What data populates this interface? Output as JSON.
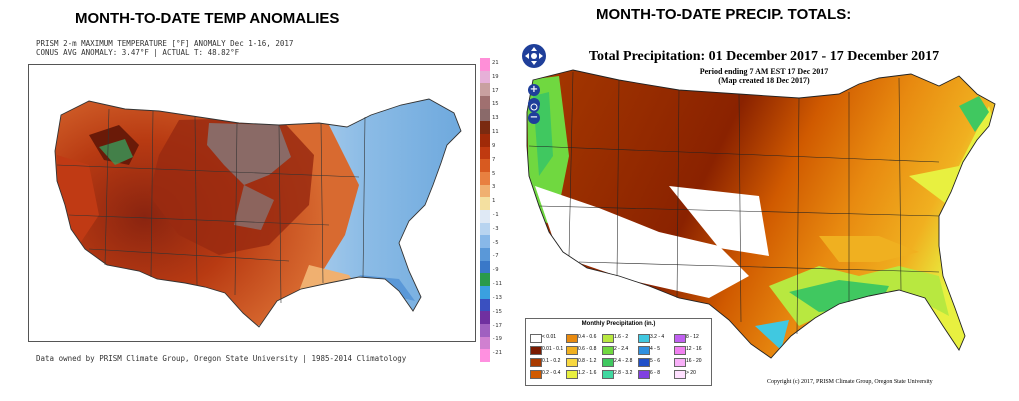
{
  "left": {
    "title": "MONTH-TO-DATE TEMP ANOMALIES",
    "header_line1": "PRISM 2-m MAXIMUM TEMPERATURE [°F] ANOMALY Dec 1-16, 2017",
    "header_line2": "CONUS AVG ANOMALY: 3.47°F | ACTUAL T: 48.82°F",
    "footer": "Data owned by PRISM Climate Group, Oregon State University | 1985-2014 Climatology",
    "colorbar_ticks": [
      "21",
      "19",
      "17",
      "15",
      "13",
      "11",
      "9",
      "7",
      "5",
      "3",
      "1",
      "-1",
      "-3",
      "-5",
      "-7",
      "-9",
      "-11",
      "-13",
      "-15",
      "-17",
      "-19",
      "-21"
    ],
    "colorbar_colors": [
      "#ff8fd8",
      "#e6b0d8",
      "#c9a0a0",
      "#a07070",
      "#8a6a6a",
      "#7a2a10",
      "#a02a08",
      "#c03a10",
      "#d85a20",
      "#e88040",
      "#f0b070",
      "#f4e0a0",
      "#dfe9f5",
      "#b8d4f0",
      "#88b8e8",
      "#5a98d8",
      "#3a78c8",
      "#2a9a4a",
      "#3aa0e0",
      "#3a50c0",
      "#7030a0",
      "#a060c0",
      "#d080d0",
      "#ff90e0"
    ]
  },
  "right": {
    "title": "MONTH-TO-DATE PRECIP. TOTALS:",
    "map_title": "Total Precipitation: 01 December 2017 - 17 December 2017",
    "sub1": "Period ending 7 AM EST 17 Dec 2017",
    "sub2": "(Map created 18 Dec 2017)",
    "copyright": "Copyright (c) 2017, PRISM Climate Group, Oregon State University",
    "legend_title": "Monthly Precipitation (in.)",
    "legend": [
      {
        "label": "< 0.01",
        "color": "#ffffff"
      },
      {
        "label": "0.01 - 0.1",
        "color": "#7a1a00"
      },
      {
        "label": "0.1 - 0.2",
        "color": "#a83a00"
      },
      {
        "label": "0.2 - 0.4",
        "color": "#d05a00"
      },
      {
        "label": "0.4 - 0.6",
        "color": "#e88a10"
      },
      {
        "label": "0.6 - 0.8",
        "color": "#f0b020"
      },
      {
        "label": "0.8 - 1.2",
        "color": "#f8d840"
      },
      {
        "label": "1.2 - 1.6",
        "color": "#e8f040"
      },
      {
        "label": "1.6 - 2",
        "color": "#b8e840"
      },
      {
        "label": "2 - 2.4",
        "color": "#70d840"
      },
      {
        "label": "2.4 - 2.8",
        "color": "#40c860"
      },
      {
        "label": "2.8 - 3.2",
        "color": "#40d8a0"
      },
      {
        "label": "3.2 - 4",
        "color": "#40c8e0"
      },
      {
        "label": "4 - 5",
        "color": "#3090e0"
      },
      {
        "label": "5 - 6",
        "color": "#2050c8"
      },
      {
        "label": "6 - 8",
        "color": "#8040e0"
      },
      {
        "label": "8 - 12",
        "color": "#c060f0"
      },
      {
        "label": "12 - 16",
        "color": "#f080f0"
      },
      {
        "label": "16 - 20",
        "color": "#f8b0f8"
      },
      {
        "label": "> 20",
        "color": "#ffe0ff"
      }
    ],
    "nav_icons": [
      "pan-icon",
      "zoom-in-icon",
      "zoom-target-icon",
      "zoom-out-icon"
    ],
    "nav_symbols": {
      "zoom_in": "+",
      "zoom_out": "−"
    }
  }
}
